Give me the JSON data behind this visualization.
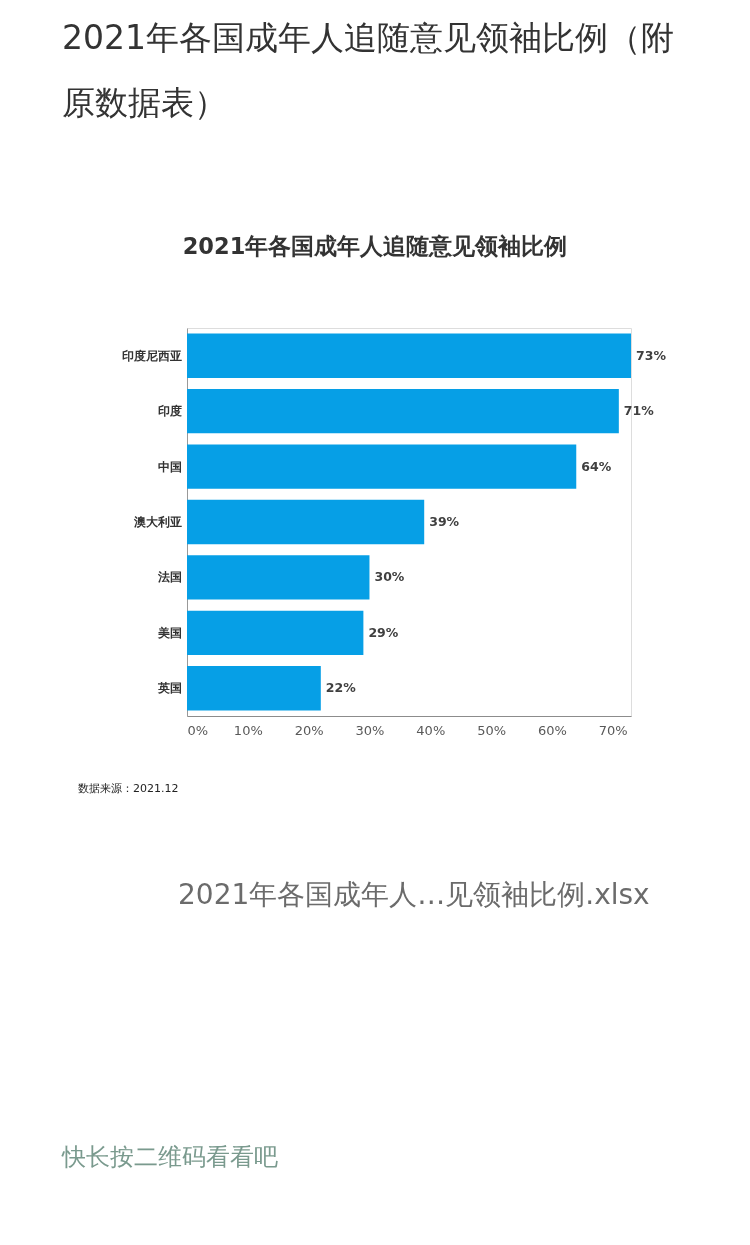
{
  "chart_data": {
    "type": "bar",
    "orientation": "horizontal",
    "title": "2021年各国成年人追随意见领袖比例（附原数据表）",
    "subtitle": "2021年各国成年人追随意见领袖比例",
    "categories": [
      "印度尼西亚",
      "印度",
      "中国",
      "澳大利亚",
      "法国",
      "美国",
      "英国"
    ],
    "values": [
      73,
      71,
      64,
      39,
      30,
      29,
      22
    ],
    "value_labels": [
      "73%",
      "71%",
      "64%",
      "39%",
      "30%",
      "29%",
      "22%"
    ],
    "color": "#069fe6",
    "xlim": [
      0,
      73
    ],
    "xticks": [
      {
        "value": 0,
        "label": "0%"
      },
      {
        "value": 10,
        "label": "10%"
      },
      {
        "value": 20,
        "label": "20%"
      },
      {
        "value": 30,
        "label": "30%"
      },
      {
        "value": 40,
        "label": "40%"
      },
      {
        "value": 50,
        "label": "50%"
      },
      {
        "value": 60,
        "label": "60%"
      },
      {
        "value": 70,
        "label": "70%"
      }
    ],
    "annotations": [
      "数据来源：2021.12",
      "2021年各国成年人…见领袖比例.xlsx",
      "快长按二维码看看吧"
    ]
  }
}
